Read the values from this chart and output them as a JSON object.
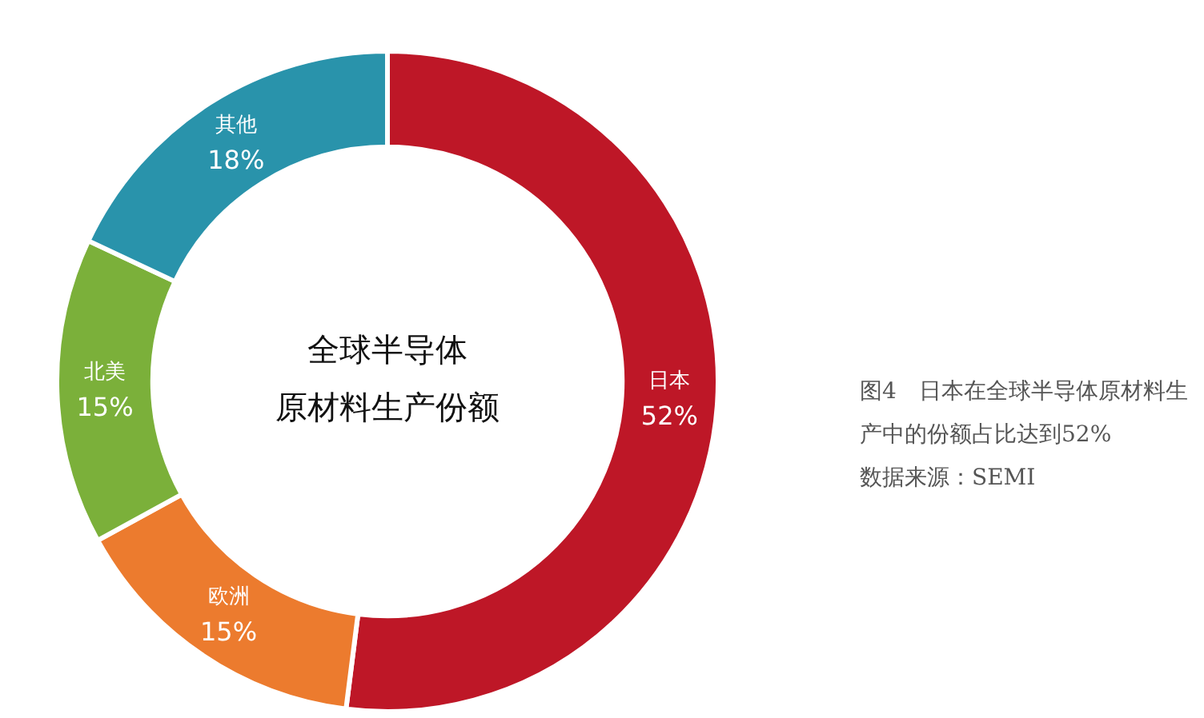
{
  "chart_data": {
    "type": "donut",
    "title": "全球半导体",
    "subtitle": "原材料生产份额",
    "categories": [
      "日本",
      "欧洲",
      "北美",
      "其他"
    ],
    "values": [
      52,
      15,
      15,
      18
    ],
    "colors": [
      "#be1727",
      "#ec7b2e",
      "#7bb03a",
      "#2993ab"
    ],
    "value_labels": [
      "52%",
      "15%",
      "15%",
      "18%"
    ],
    "annotations": [
      "图4　日本在全球半导体原材料生产中的份额占比达到52%",
      "数据来源：SEMI"
    ],
    "legend": false
  }
}
